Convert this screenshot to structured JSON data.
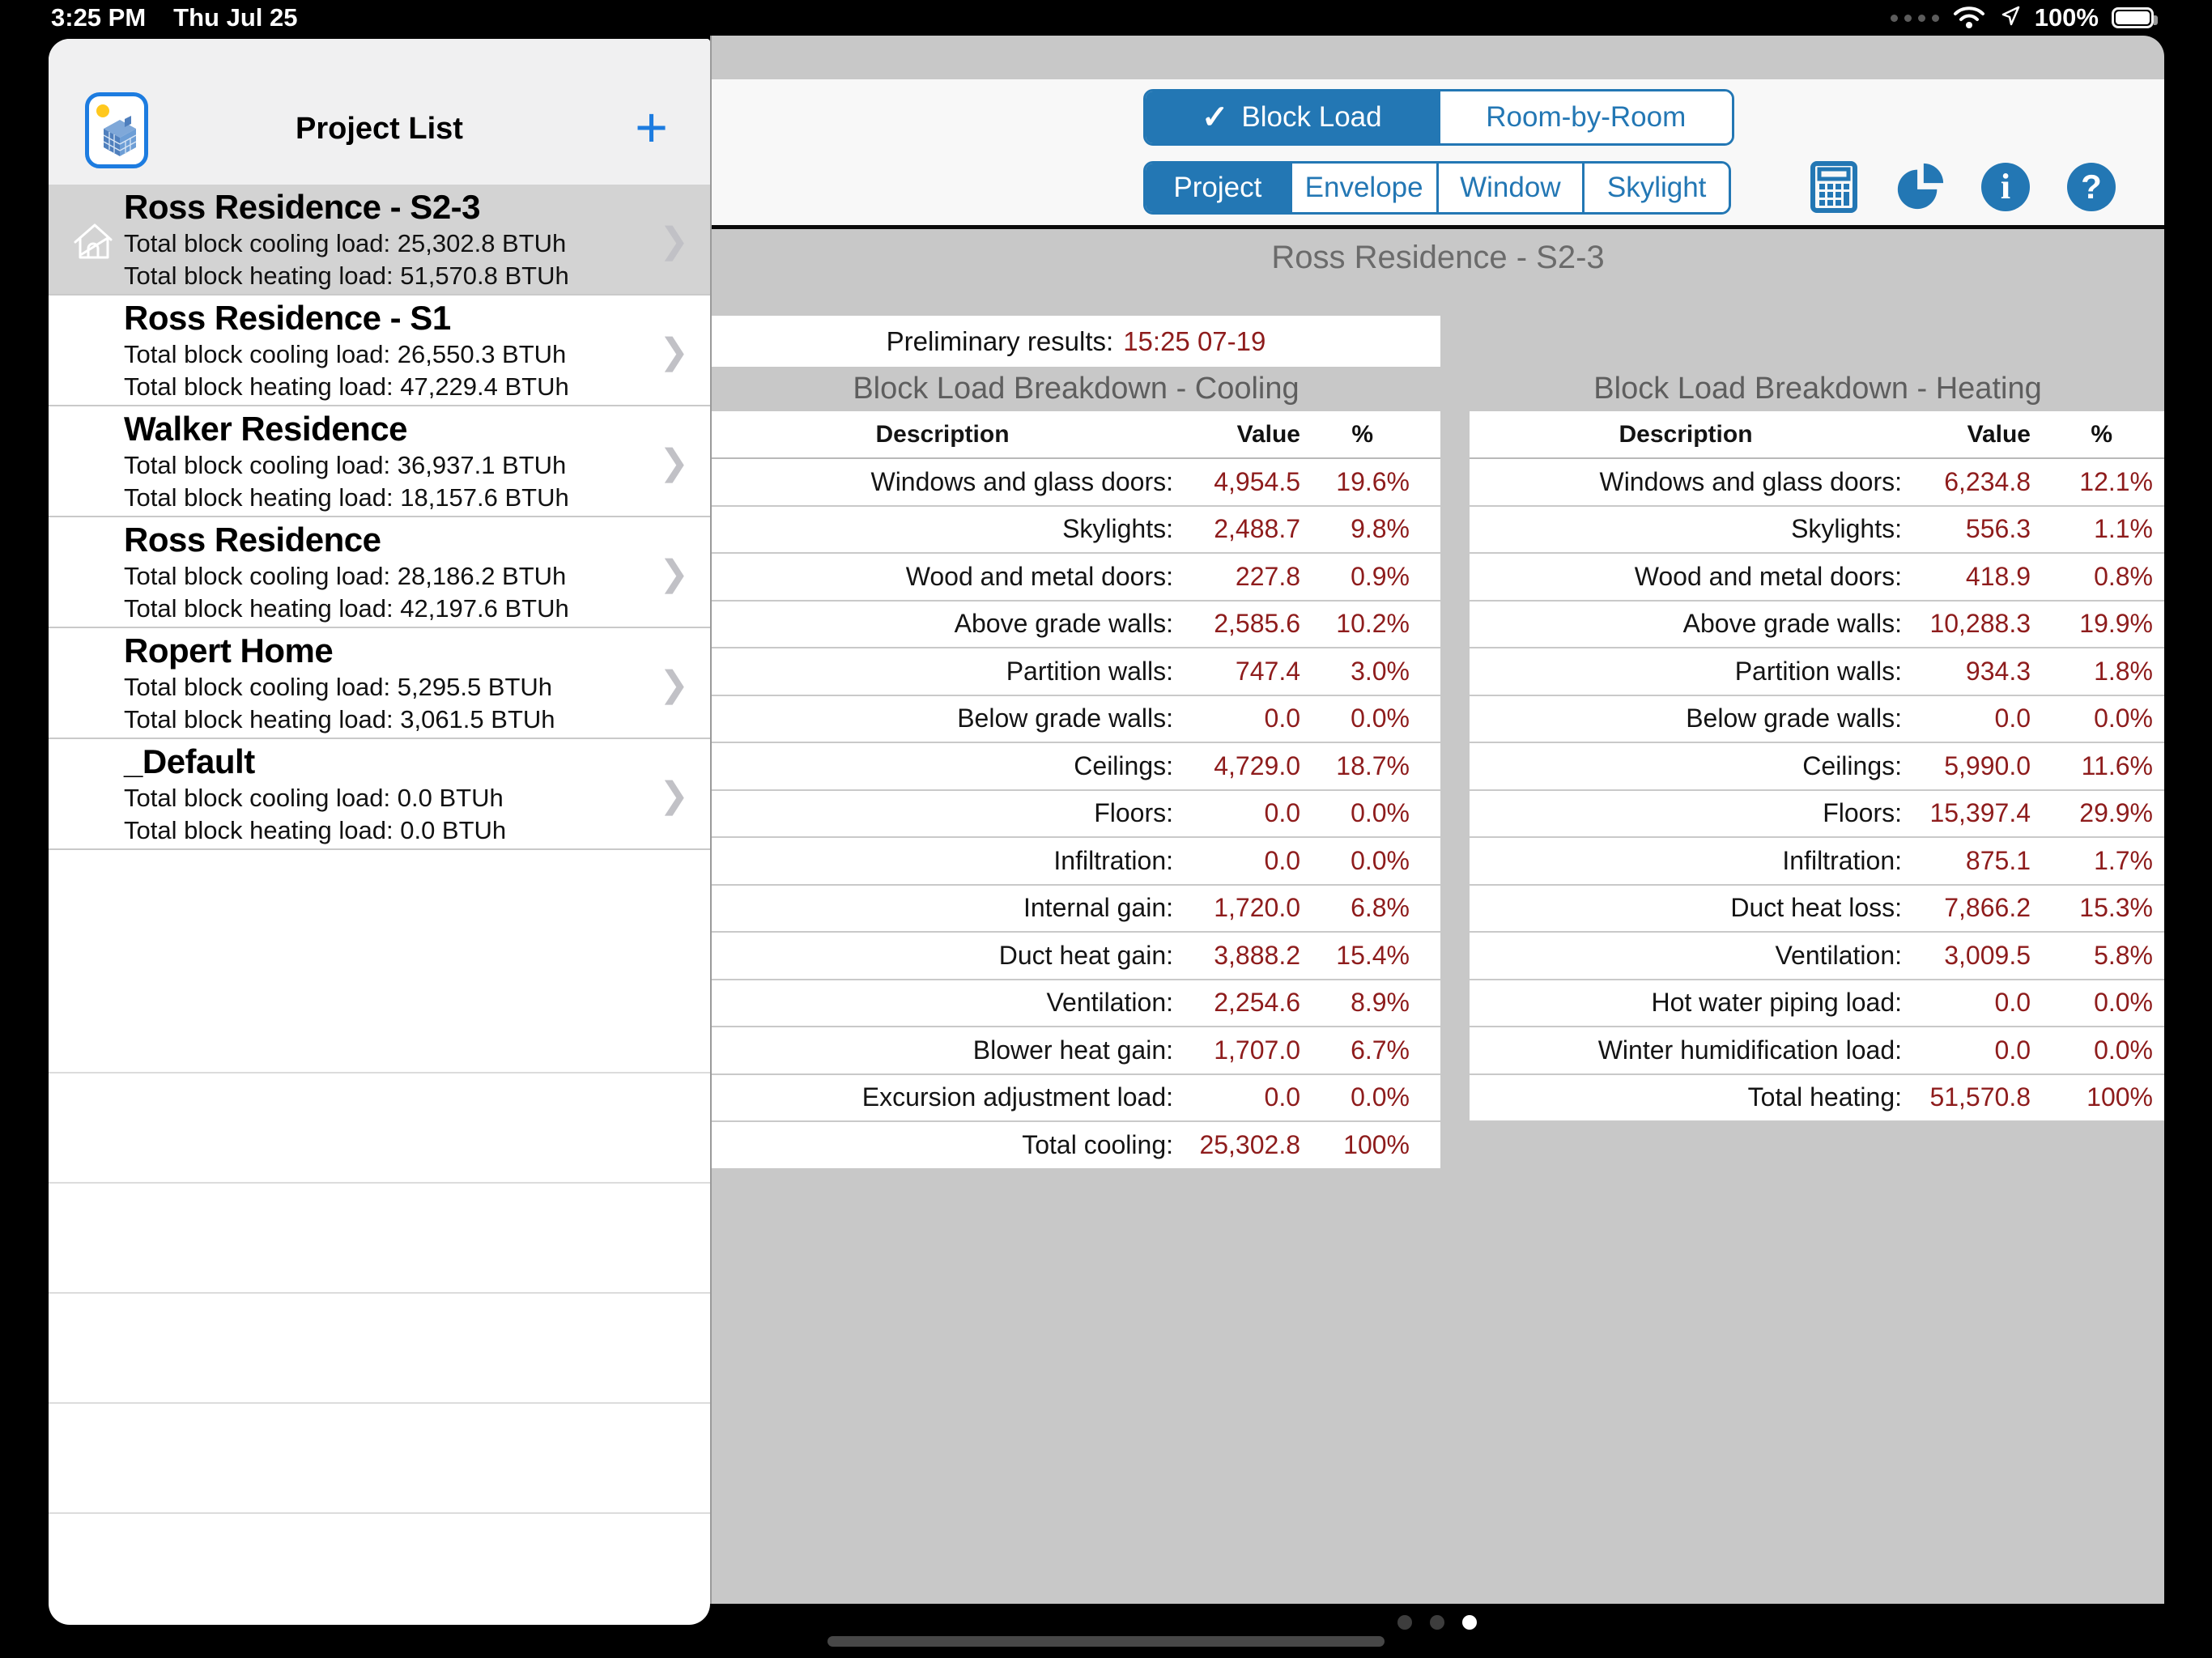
{
  "colors": {
    "accent": "#2377b4",
    "value_red": "#8e1c1c",
    "content_gray": "#c8c8c8"
  },
  "status_bar": {
    "time": "3:25 PM",
    "date": "Thu Jul 25",
    "battery": "100%"
  },
  "sidebar": {
    "title": "Project List",
    "add_button": "+",
    "chevron": "❯",
    "projects": [
      {
        "name": "Ross Residence - S2-3",
        "cooling_line": "Total block cooling load: 25,302.8 BTUh",
        "heating_line": "Total block heating load: 51,570.8 BTUh"
      },
      {
        "name": "Ross Residence - S1",
        "cooling_line": "Total block cooling load: 26,550.3 BTUh",
        "heating_line": "Total block heating load: 47,229.4 BTUh"
      },
      {
        "name": "Walker Residence",
        "cooling_line": "Total block cooling load: 36,937.1 BTUh",
        "heating_line": "Total block heating load: 18,157.6 BTUh"
      },
      {
        "name": "Ross Residence",
        "cooling_line": "Total block cooling load: 28,186.2 BTUh",
        "heating_line": "Total block heating load: 42,197.6 BTUh"
      },
      {
        "name": "Ropert Home",
        "cooling_line": "Total block cooling load: 5,295.5 BTUh",
        "heating_line": "Total block heating load: 3,061.5 BTUh"
      },
      {
        "name": "_Default",
        "cooling_line": "Total block cooling load: 0.0 BTUh",
        "heating_line": "Total block heating load: 0.0 BTUh"
      }
    ]
  },
  "toolbar": {
    "mode_tabs": {
      "check": "✓",
      "block_load": "Block Load",
      "room_by_room": "Room-by-Room"
    },
    "view_tabs": {
      "project": "Project",
      "envelope": "Envelope",
      "window": "Window",
      "skylight": "Skylight"
    },
    "info_glyph": "i",
    "help_glyph": "?"
  },
  "main": {
    "title": "Ross Residence - S2-3",
    "preliminary_label": "Preliminary results:",
    "preliminary_value": "15:25 07-19",
    "cooling": {
      "title": "Block Load Breakdown - Cooling",
      "columns": [
        "Description",
        "Value",
        "%"
      ],
      "rows": [
        [
          "Windows and glass doors:",
          "4,954.5",
          "19.6%"
        ],
        [
          "Skylights:",
          "2,488.7",
          "9.8%"
        ],
        [
          "Wood and metal doors:",
          "227.8",
          "0.9%"
        ],
        [
          "Above grade walls:",
          "2,585.6",
          "10.2%"
        ],
        [
          "Partition walls:",
          "747.4",
          "3.0%"
        ],
        [
          "Below grade walls:",
          "0.0",
          "0.0%"
        ],
        [
          "Ceilings:",
          "4,729.0",
          "18.7%"
        ],
        [
          "Floors:",
          "0.0",
          "0.0%"
        ],
        [
          "Infiltration:",
          "0.0",
          "0.0%"
        ],
        [
          "Internal gain:",
          "1,720.0",
          "6.8%"
        ],
        [
          "Duct heat gain:",
          "3,888.2",
          "15.4%"
        ],
        [
          "Ventilation:",
          "2,254.6",
          "8.9%"
        ],
        [
          "Blower heat gain:",
          "1,707.0",
          "6.7%"
        ],
        [
          "Excursion adjustment load:",
          "0.0",
          "0.0%"
        ],
        [
          "Total cooling:",
          "25,302.8",
          "100%"
        ]
      ]
    },
    "heating": {
      "title": "Block Load Breakdown - Heating",
      "columns": [
        "Description",
        "Value",
        "%"
      ],
      "rows": [
        [
          "Windows and glass doors:",
          "6,234.8",
          "12.1%"
        ],
        [
          "Skylights:",
          "556.3",
          "1.1%"
        ],
        [
          "Wood and metal doors:",
          "418.9",
          "0.8%"
        ],
        [
          "Above grade walls:",
          "10,288.3",
          "19.9%"
        ],
        [
          "Partition walls:",
          "934.3",
          "1.8%"
        ],
        [
          "Below grade walls:",
          "0.0",
          "0.0%"
        ],
        [
          "Ceilings:",
          "5,990.0",
          "11.6%"
        ],
        [
          "Floors:",
          "15,397.4",
          "29.9%"
        ],
        [
          "Infiltration:",
          "875.1",
          "1.7%"
        ],
        [
          "Duct heat loss:",
          "7,866.2",
          "15.3%"
        ],
        [
          "Ventilation:",
          "3,009.5",
          "5.8%"
        ],
        [
          "Hot water piping load:",
          "0.0",
          "0.0%"
        ],
        [
          "Winter humidification load:",
          "0.0",
          "0.0%"
        ],
        [
          "Total heating:",
          "51,570.8",
          "100%"
        ]
      ]
    }
  }
}
